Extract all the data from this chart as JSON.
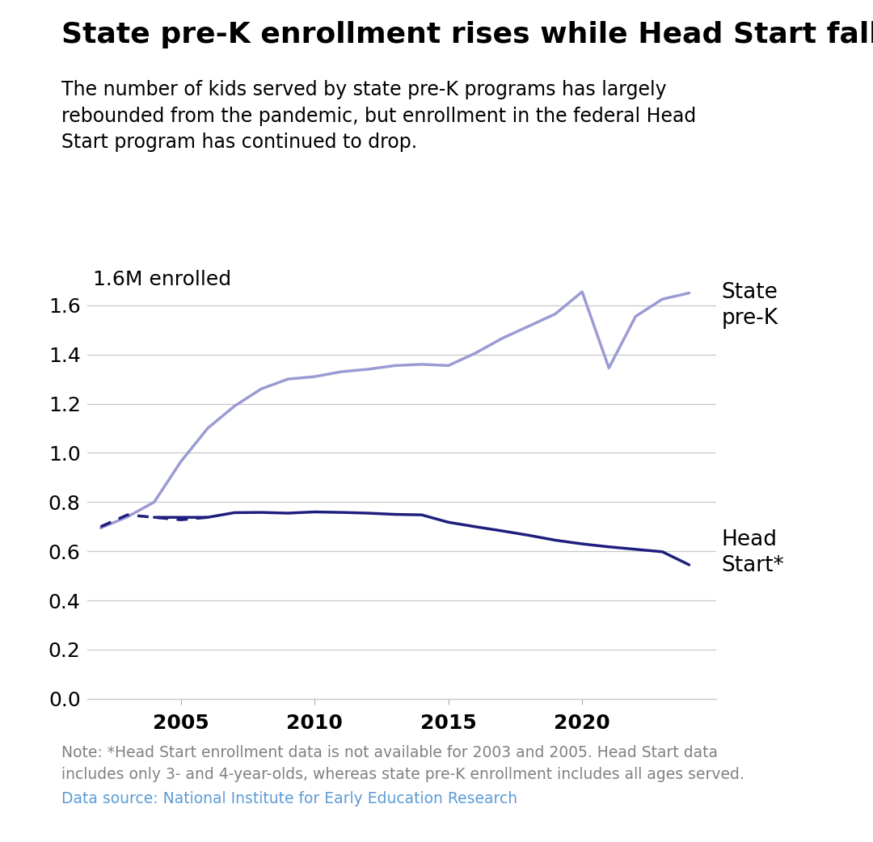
{
  "title": "State pre-K enrollment rises while Head Start falls",
  "subtitle": "The number of kids served by state pre-K programs has largely\nrebounded from the pandemic, but enrollment in the federal Head\nStart program has continued to drop.",
  "ylabel_text": "1.6M enrolled",
  "note": "Note: *Head Start enrollment data is not available for 2003 and 2005. Head Start data\nincludes only 3- and 4-year-olds, whereas state pre-K enrollment includes all ages served.",
  "source": "Data source: National Institute for Early Education Research",
  "state_prek": {
    "years": [
      2002,
      2003,
      2004,
      2005,
      2006,
      2007,
      2008,
      2009,
      2010,
      2011,
      2012,
      2013,
      2014,
      2015,
      2016,
      2017,
      2018,
      2019,
      2020,
      2021,
      2022,
      2023,
      2024
    ],
    "values": [
      0.695,
      0.74,
      0.8,
      0.965,
      1.1,
      1.19,
      1.26,
      1.3,
      1.31,
      1.33,
      1.34,
      1.355,
      1.36,
      1.355,
      1.405,
      1.465,
      1.515,
      1.565,
      1.655,
      1.345,
      1.555,
      1.625,
      1.65
    ],
    "color": "#9b9bd4",
    "linewidth": 2.5,
    "label": "State\npre-K"
  },
  "head_start": {
    "years_solid": [
      2004,
      2006,
      2007,
      2008,
      2009,
      2010,
      2011,
      2012,
      2013,
      2014,
      2015,
      2016,
      2017,
      2018,
      2019,
      2020,
      2021,
      2022,
      2023,
      2024
    ],
    "values_solid": [
      0.738,
      0.738,
      0.757,
      0.758,
      0.755,
      0.76,
      0.758,
      0.755,
      0.75,
      0.748,
      0.718,
      0.7,
      0.683,
      0.665,
      0.645,
      0.63,
      0.618,
      0.608,
      0.598,
      0.545
    ],
    "years_dashed": [
      2002,
      2003,
      2004,
      2005,
      2006
    ],
    "values_dashed": [
      0.7,
      0.748,
      0.738,
      0.728,
      0.738
    ],
    "color": "#1e1e7e",
    "linewidth": 2.5,
    "label": "Head\nStart*"
  },
  "xlim": [
    2001.5,
    2025.0
  ],
  "ylim": [
    0.0,
    1.78
  ],
  "yticks": [
    0.0,
    0.2,
    0.4,
    0.6,
    0.8,
    1.0,
    1.2,
    1.4,
    1.6
  ],
  "xticks": [
    2005,
    2010,
    2015,
    2020
  ],
  "background_color": "#ffffff",
  "grid_color": "#c8c8c8",
  "title_fontsize": 26,
  "subtitle_fontsize": 17,
  "tick_fontsize": 18,
  "note_fontsize": 13.5,
  "label_fontsize": 19
}
